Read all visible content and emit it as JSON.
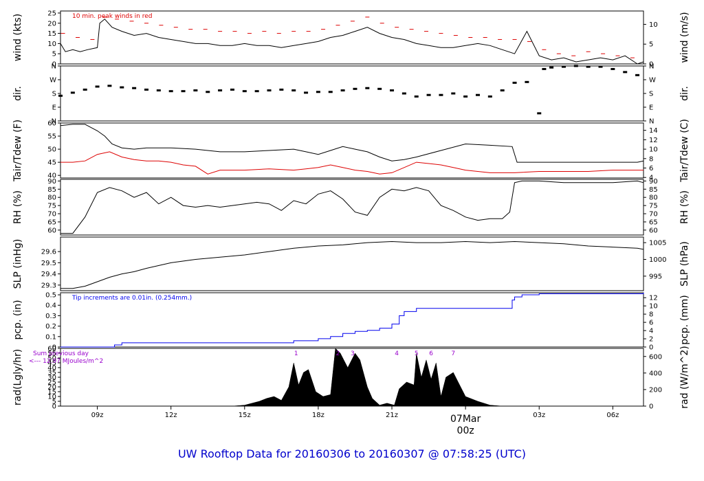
{
  "title": "UW Rooftop Data for 20160306  to  20160307 @ 07:58:25  (UTC)",
  "colors": {
    "black": "#000000",
    "red": "#dd0000",
    "blue": "#0000ee",
    "purple": "#9900cc",
    "title": "#0000cc",
    "date": "#dd0000"
  },
  "x_axis": {
    "range_hours": [
      7.5,
      31.25
    ],
    "ticks": [
      {
        "h": 9,
        "label": "09z"
      },
      {
        "h": 12,
        "label": "12z"
      },
      {
        "h": 15,
        "label": "15z"
      },
      {
        "h": 18,
        "label": "18z"
      },
      {
        "h": 21,
        "label": "21z"
      },
      {
        "h": 27,
        "label": "03z"
      },
      {
        "h": 30,
        "label": "06z"
      }
    ],
    "day_marker": {
      "h": 24,
      "date": "07Mar",
      "label": "00z"
    }
  },
  "chart_data": [
    {
      "id": "wind",
      "type": "line",
      "ylabel": "wind (kts)",
      "ylabel2": "wind (m/s)",
      "ylim": [
        0,
        26
      ],
      "yticks": [
        0,
        5,
        10,
        15,
        20,
        25
      ],
      "y2ticks": [
        {
          "v": 0,
          "at": 0
        },
        {
          "v": 5,
          "at": 9.72
        },
        {
          "v": 10,
          "at": 19.44
        }
      ],
      "annotation": "10 min. peak winds in red",
      "series": [
        {
          "style": "line",
          "color": "#000000",
          "x": [
            7.5,
            7.7,
            8,
            8.3,
            8.6,
            9,
            9.1,
            9.3,
            9.6,
            10,
            10.5,
            11,
            11.5,
            12,
            12.5,
            13,
            13.5,
            14,
            14.5,
            15,
            15.5,
            16,
            16.5,
            17,
            17.5,
            18,
            18.5,
            19,
            19.5,
            20,
            20.5,
            21,
            21.5,
            22,
            22.5,
            23,
            23.5,
            24,
            24.5,
            25,
            25.5,
            26,
            26.5,
            27,
            27.5,
            28,
            28.5,
            29,
            29.5,
            30,
            30.5,
            31,
            31.25
          ],
          "y": [
            10,
            6,
            7,
            6,
            7,
            8,
            20,
            22,
            18,
            16,
            14,
            15,
            13,
            12,
            11,
            10,
            10,
            9,
            9,
            10,
            9,
            9,
            8,
            9,
            10,
            11,
            13,
            14,
            16,
            18,
            15,
            13,
            12,
            10,
            9,
            8,
            8,
            9,
            10,
            9,
            7,
            5,
            16,
            4,
            2,
            3,
            1,
            2,
            3,
            2,
            4,
            0,
            1
          ]
        },
        {
          "style": "dash",
          "color": "#dd0000",
          "x": [
            7.6,
            8.2,
            8.8,
            9.3,
            9.8,
            10.4,
            11,
            11.6,
            12.2,
            12.8,
            13.4,
            14,
            14.6,
            15.2,
            15.8,
            16.4,
            17,
            17.6,
            18.2,
            18.8,
            19.4,
            20,
            20.6,
            21.2,
            21.8,
            22.4,
            23,
            23.6,
            24.2,
            24.8,
            25.4,
            26,
            26.6,
            27.2,
            27.8,
            28.4,
            29,
            29.6,
            30.2,
            30.8
          ],
          "y": [
            15,
            13,
            12,
            23,
            22,
            21,
            20,
            19,
            18,
            17,
            17,
            16,
            16,
            15,
            16,
            15,
            16,
            16,
            17,
            19,
            21,
            23,
            20,
            18,
            17,
            16,
            15,
            14,
            13,
            13,
            12,
            12,
            11,
            7,
            5,
            4,
            6,
            5,
            4,
            3
          ]
        }
      ]
    },
    {
      "id": "dir",
      "type": "scatter",
      "ylabel": "dir.",
      "ylabel2": "dir.",
      "ylim": [
        0,
        360
      ],
      "yticks": [
        {
          "v": 0,
          "label": "N"
        },
        {
          "v": 90,
          "label": "E"
        },
        {
          "v": 180,
          "label": "S"
        },
        {
          "v": 270,
          "label": "W"
        },
        {
          "v": 360,
          "label": "N"
        }
      ],
      "y2ticks": [
        {
          "v": 0,
          "label": "N"
        },
        {
          "v": 90,
          "label": "E"
        },
        {
          "v": 180,
          "label": "S"
        },
        {
          "v": 270,
          "label": "W"
        },
        {
          "v": 360,
          "label": "N"
        }
      ],
      "series": [
        {
          "style": "points",
          "color": "#000000",
          "x": [
            7.5,
            8,
            8.5,
            9,
            9.5,
            10,
            10.5,
            11,
            11.5,
            12,
            12.5,
            13,
            13.5,
            14,
            14.5,
            15,
            15.5,
            16,
            16.5,
            17,
            17.5,
            18,
            18.5,
            19,
            19.5,
            20,
            20.5,
            21,
            21.5,
            22,
            22.5,
            23,
            23.5,
            24,
            24.5,
            25,
            25.5,
            26,
            26.5,
            27,
            27.2,
            27.5,
            28,
            28.5,
            29,
            29.5,
            30,
            30.5,
            31
          ],
          "y": [
            165,
            185,
            205,
            225,
            230,
            220,
            215,
            205,
            200,
            195,
            195,
            200,
            190,
            200,
            205,
            195,
            195,
            200,
            205,
            200,
            185,
            190,
            190,
            200,
            210,
            215,
            210,
            200,
            180,
            160,
            170,
            170,
            180,
            160,
            170,
            160,
            200,
            250,
            255,
            50,
            340,
            350,
            355,
            360,
            355,
            355,
            340,
            320,
            300
          ]
        }
      ]
    },
    {
      "id": "temp",
      "type": "line",
      "ylabel": "Tair/Tdew (F)",
      "ylabel2": "Tair/Tdew (C)",
      "ylim": [
        39,
        60
      ],
      "yticks": [
        40,
        45,
        50,
        55,
        60
      ],
      "y2ticks": [
        {
          "v": 4,
          "at": 39.2
        },
        {
          "v": 6,
          "at": 42.8
        },
        {
          "v": 8,
          "at": 46.4
        },
        {
          "v": 10,
          "at": 50
        },
        {
          "v": 12,
          "at": 53.6
        },
        {
          "v": 14,
          "at": 57.2
        }
      ],
      "series": [
        {
          "style": "line",
          "color": "#000000",
          "x": [
            7.5,
            8,
            8.5,
            9,
            9.3,
            9.6,
            10,
            10.5,
            11,
            12,
            13,
            14,
            15,
            16,
            17,
            17.5,
            18,
            18.5,
            19,
            19.5,
            20,
            20.5,
            21,
            21.5,
            22,
            23,
            24,
            25,
            25.9,
            26.1,
            27,
            28,
            29,
            30,
            31,
            31.25
          ],
          "y": [
            59,
            59.5,
            59.5,
            57,
            55,
            52,
            50.5,
            50,
            50.5,
            50.5,
            50,
            49,
            49,
            49.5,
            50,
            49,
            48,
            49.5,
            51,
            50,
            49,
            47,
            45.5,
            46,
            47,
            49.5,
            52,
            51.5,
            51,
            45,
            45,
            45,
            45,
            45,
            45,
            45.5
          ]
        },
        {
          "style": "line",
          "color": "#dd0000",
          "x": [
            7.5,
            8,
            8.5,
            9,
            9.5,
            10,
            10.5,
            11,
            11.5,
            12,
            12.5,
            13,
            13.5,
            14,
            15,
            16,
            17,
            17.5,
            18,
            18.5,
            19,
            19.5,
            20,
            20.5,
            21,
            21.5,
            22,
            22.5,
            23,
            23.5,
            24,
            25,
            26,
            27,
            28,
            29,
            30,
            31,
            31.25
          ],
          "y": [
            45,
            45,
            45.5,
            48,
            49,
            47,
            46,
            45.5,
            45.5,
            45,
            44,
            43.5,
            40.5,
            42,
            42,
            42.5,
            42,
            42.5,
            43,
            44,
            43,
            42,
            41.5,
            40.5,
            41,
            43,
            45,
            44.5,
            44,
            43,
            42,
            41,
            41,
            41.5,
            41.5,
            41.5,
            42,
            42,
            42
          ]
        }
      ]
    },
    {
      "id": "rh",
      "type": "line",
      "ylabel": "RH (%)",
      "ylabel2": "RH (%)",
      "ylim": [
        57,
        91
      ],
      "yticks": [
        60,
        65,
        70,
        75,
        80,
        85,
        90
      ],
      "y2ticks": [
        {
          "v": 60,
          "at": 60
        },
        {
          "v": 65,
          "at": 65
        },
        {
          "v": 70,
          "at": 70
        },
        {
          "v": 75,
          "at": 75
        },
        {
          "v": 80,
          "at": 80
        },
        {
          "v": 85,
          "at": 85
        },
        {
          "v": 90,
          "at": 90
        }
      ],
      "series": [
        {
          "style": "line",
          "color": "#000000",
          "x": [
            7.5,
            8,
            8.5,
            9,
            9.5,
            10,
            10.5,
            11,
            11.5,
            12,
            12.5,
            13,
            13.5,
            14,
            14.5,
            15,
            15.5,
            16,
            16.5,
            17,
            17.5,
            18,
            18.5,
            19,
            19.5,
            20,
            20.5,
            21,
            21.5,
            22,
            22.5,
            23,
            23.5,
            24,
            24.5,
            25,
            25.5,
            25.8,
            26,
            26.3,
            27,
            28,
            29,
            30,
            31,
            31.25
          ],
          "y": [
            58,
            58,
            68,
            83,
            86,
            84,
            80,
            83,
            76,
            80,
            75,
            74,
            75,
            74,
            75,
            76,
            77,
            76,
            72,
            78,
            76,
            82,
            84,
            79,
            71,
            69,
            80,
            85,
            84,
            86,
            84,
            75,
            72,
            68,
            66,
            67,
            67,
            71,
            89,
            90,
            90,
            89,
            89,
            89,
            90,
            89
          ]
        }
      ]
    },
    {
      "id": "slp",
      "type": "line",
      "ylabel": "SLP (inHg)",
      "ylabel2": "SLP (hPa)",
      "ylim": [
        29.25,
        29.73
      ],
      "yticks": [
        29.3,
        29.4,
        29.5,
        29.6
      ],
      "y2ticks": [
        {
          "v": 995,
          "at": 29.38
        },
        {
          "v": 1000,
          "at": 29.53
        },
        {
          "v": 1005,
          "at": 29.68
        }
      ],
      "series": [
        {
          "style": "line",
          "color": "#000000",
          "x": [
            7.5,
            8,
            8.5,
            9,
            9.5,
            10,
            10.5,
            11,
            12,
            13,
            14,
            15,
            16,
            17,
            18,
            19,
            20,
            21,
            22,
            23,
            24,
            25,
            26,
            27,
            28,
            29,
            30,
            31,
            31.25
          ],
          "y": [
            29.27,
            29.27,
            29.29,
            29.33,
            29.37,
            29.4,
            29.42,
            29.45,
            29.5,
            29.53,
            29.55,
            29.57,
            29.6,
            29.63,
            29.65,
            29.66,
            29.68,
            29.69,
            29.68,
            29.68,
            29.69,
            29.68,
            29.69,
            29.68,
            29.67,
            29.65,
            29.64,
            29.63,
            29.62
          ]
        }
      ]
    },
    {
      "id": "pcp",
      "type": "line",
      "ylabel": "pcp. (in)",
      "ylabel2": "pcp. (mm)",
      "ylim": [
        0,
        0.52
      ],
      "yticks": [
        0,
        0.1,
        0.2,
        0.3,
        0.4,
        0.5
      ],
      "y2ticks": [
        {
          "v": 0,
          "at": 0
        },
        {
          "v": 2,
          "at": 0.0787
        },
        {
          "v": 4,
          "at": 0.1575
        },
        {
          "v": 6,
          "at": 0.2362
        },
        {
          "v": 8,
          "at": 0.315
        },
        {
          "v": 10,
          "at": 0.3937
        },
        {
          "v": 12,
          "at": 0.4724
        }
      ],
      "annotation": "Tip increments are 0.01in. (0.254mm.)",
      "series": [
        {
          "style": "step",
          "color": "#0000ee",
          "x": [
            7.5,
            9.5,
            9.7,
            10,
            16,
            17,
            18,
            18.5,
            19,
            19.5,
            20,
            20.5,
            21,
            21.3,
            21.5,
            22,
            24,
            25,
            25.8,
            25.9,
            26,
            26.3,
            27,
            31.25
          ],
          "y": [
            0,
            0,
            0.02,
            0.04,
            0.04,
            0.06,
            0.08,
            0.1,
            0.13,
            0.15,
            0.16,
            0.18,
            0.22,
            0.3,
            0.34,
            0.37,
            0.37,
            0.37,
            0.37,
            0.45,
            0.48,
            0.5,
            0.51,
            0.52
          ]
        }
      ]
    },
    {
      "id": "rad",
      "type": "area",
      "ylabel": "rad(Lgly/hr)",
      "ylabel2": "rad (W/m^2)",
      "ylim": [
        0,
        60
      ],
      "yticks": [
        0,
        5,
        10,
        15,
        20,
        25,
        30,
        35,
        40,
        45,
        50,
        55,
        60
      ],
      "y2ticks": [
        {
          "v": 0,
          "at": 0
        },
        {
          "v": 200,
          "at": 17.2
        },
        {
          "v": 400,
          "at": 34.4
        },
        {
          "v": 600,
          "at": 51.6
        }
      ],
      "sum_note": [
        "Sum previous day",
        "<--- 12.97 MJoules/m^2"
      ],
      "markers": [
        {
          "h": 17.1,
          "label": "1"
        },
        {
          "h": 18.8,
          "label": "2"
        },
        {
          "h": 19.4,
          "label": "3"
        },
        {
          "h": 21.2,
          "label": "4"
        },
        {
          "h": 22.0,
          "label": "5"
        },
        {
          "h": 22.6,
          "label": "6"
        },
        {
          "h": 23.5,
          "label": "7"
        }
      ],
      "series": [
        {
          "style": "fill",
          "color": "#000000",
          "x": [
            14.5,
            15,
            15.3,
            15.6,
            15.9,
            16.2,
            16.5,
            16.8,
            17.0,
            17.2,
            17.4,
            17.6,
            17.9,
            18.2,
            18.5,
            18.7,
            18.9,
            19.0,
            19.2,
            19.5,
            19.7,
            20.0,
            20.2,
            20.5,
            20.8,
            21.1,
            21.3,
            21.6,
            21.9,
            22.0,
            22.2,
            22.4,
            22.6,
            22.8,
            23.0,
            23.2,
            23.5,
            23.7,
            24.0,
            24.5,
            25.0,
            25.5
          ],
          "y": [
            0,
            1,
            3,
            5,
            8,
            10,
            6,
            20,
            45,
            22,
            35,
            38,
            15,
            10,
            12,
            60,
            55,
            50,
            40,
            55,
            48,
            20,
            8,
            1,
            3,
            1,
            18,
            25,
            22,
            55,
            30,
            48,
            28,
            45,
            10,
            30,
            35,
            25,
            10,
            5,
            1,
            0
          ]
        }
      ]
    }
  ]
}
